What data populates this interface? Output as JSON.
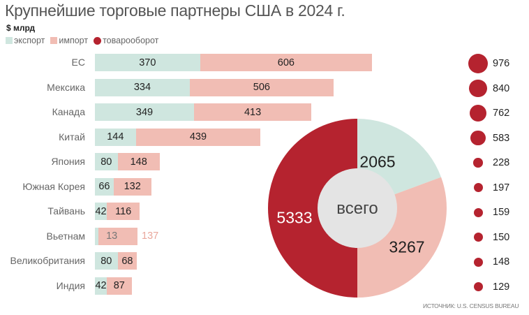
{
  "title": "Крупнейшие торговые партнеры США в 2024 г.",
  "subtitle": "$ млрд",
  "legend": [
    {
      "label": "экспорт",
      "color": "#cfe6df",
      "shape": "square"
    },
    {
      "label": "импорт",
      "color": "#f1bdb4",
      "shape": "square"
    },
    {
      "label": "товарооборот",
      "color": "#b5232f",
      "shape": "circle"
    }
  ],
  "source": "ИСТОЧНИК: U.S. CENSUS BUREAU",
  "colors": {
    "export": "#cfe6df",
    "import": "#f1bdb4",
    "turnover": "#b5232f",
    "center": "#e4e4e4"
  },
  "chart_data": [
    {
      "type": "bar",
      "stacked": true,
      "orientation": "horizontal",
      "title": "Крупнейшие торговые партнеры США в 2024 г.",
      "ylabel": "$ млрд",
      "categories": [
        "ЕС",
        "Мексика",
        "Канада",
        "Китай",
        "Япония",
        "Южная Корея",
        "Тайвань",
        "Вьетнам",
        "Великобритания",
        "Индия"
      ],
      "series": [
        {
          "name": "экспорт",
          "values": [
            370,
            334,
            349,
            144,
            80,
            66,
            42,
            13,
            80,
            42
          ]
        },
        {
          "name": "импорт",
          "values": [
            606,
            506,
            413,
            439,
            148,
            132,
            116,
            137,
            68,
            87
          ]
        }
      ],
      "grid": false,
      "legend_position": "top-left"
    },
    {
      "type": "scatter",
      "subtype": "bubble",
      "name": "товарооборот",
      "categories": [
        "ЕС",
        "Мексика",
        "Канада",
        "Китай",
        "Япония",
        "Южная Корея",
        "Тайвань",
        "Вьетнам",
        "Великобритания",
        "Индия"
      ],
      "values": [
        976,
        840,
        762,
        583,
        228,
        197,
        159,
        150,
        148,
        129
      ]
    },
    {
      "type": "pie",
      "subtype": "donut",
      "center_label": "всего",
      "slices": [
        {
          "name": "экспорт",
          "value": 2065
        },
        {
          "name": "импорт",
          "value": 3267
        },
        {
          "name": "товарооборот",
          "value": 5333
        }
      ]
    }
  ]
}
